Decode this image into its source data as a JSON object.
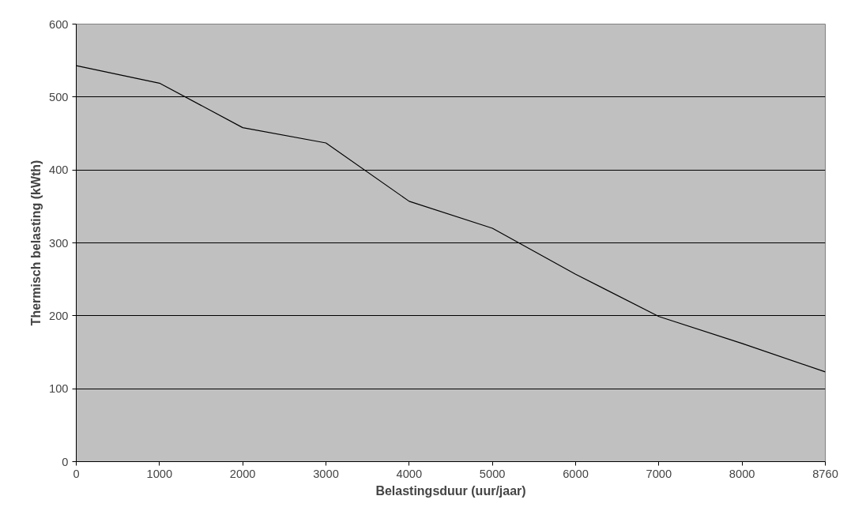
{
  "chart_data": {
    "type": "line",
    "xlabel": "Belastingsduur (uur/jaar)",
    "ylabel": "Thermisch belasting (kWth)",
    "categories": [
      "0",
      "1000",
      "2000",
      "3000",
      "4000",
      "5000",
      "6000",
      "7000",
      "8000",
      "8760"
    ],
    "series": [
      {
        "color": "#000000",
        "values": [
          543,
          519,
          458,
          437,
          357,
          320,
          257,
          199,
          162,
          123
        ]
      }
    ],
    "ylim": [
      0,
      600
    ],
    "yticks": [
      0,
      100,
      200,
      300,
      400,
      500,
      600
    ],
    "grid": "y",
    "marker": "none",
    "line_style": "solid"
  }
}
